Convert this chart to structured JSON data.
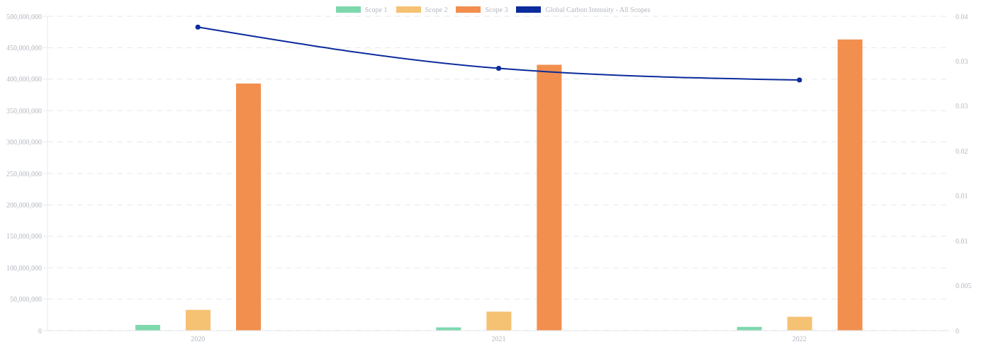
{
  "chart_data": {
    "type": "bar",
    "categories": [
      "2020",
      "2021",
      "2022"
    ],
    "series": [
      {
        "name": "Scope 1",
        "color": "#7dd8ad",
        "values": [
          9000000,
          5000000,
          6000000
        ]
      },
      {
        "name": "Scope 2",
        "color": "#f5c172",
        "values": [
          33000000,
          30000000,
          22000000
        ]
      },
      {
        "name": "Scope 3",
        "color": "#f28f4e",
        "values": [
          393000000,
          423000000,
          463000000
        ]
      },
      {
        "name": "Global Carbon Intensity - All Scopes",
        "type": "line",
        "axis": "y2",
        "color": "#0c2b9c",
        "values": [
          0.0338,
          0.0292,
          0.0279
        ]
      }
    ],
    "ylim": [
      0,
      500000000
    ],
    "yticks": [
      0,
      {
        "value": 50000000,
        "label": "50,000,000"
      },
      {
        "value": 100000000,
        "label": "100,000,000"
      },
      {
        "value": 150000000,
        "label": "150,000,000"
      },
      {
        "value": 200000000,
        "label": "200,000,000"
      },
      {
        "value": 250000000,
        "label": "250,000,000"
      },
      {
        "value": 300000000,
        "label": "300,000,000"
      },
      {
        "value": 350000000,
        "label": "350,000,000"
      },
      {
        "value": 400000000,
        "label": "400,000,000"
      },
      {
        "value": 450000000,
        "label": "450,000,000"
      },
      {
        "value": 500000000,
        "label": "500,000,000"
      }
    ],
    "y2lim": [
      0,
      0.035
    ],
    "y2ticks": [
      0,
      0.005,
      0.01,
      {
        "value": 0.015,
        "label": "0.01"
      },
      0.02,
      {
        "value": 0.025,
        "label": "0.03"
      },
      0.03,
      {
        "value": 0.035,
        "label": "0.04"
      }
    ],
    "grid": "y",
    "legend": "top",
    "marker": "circle",
    "line_style": "solid"
  }
}
